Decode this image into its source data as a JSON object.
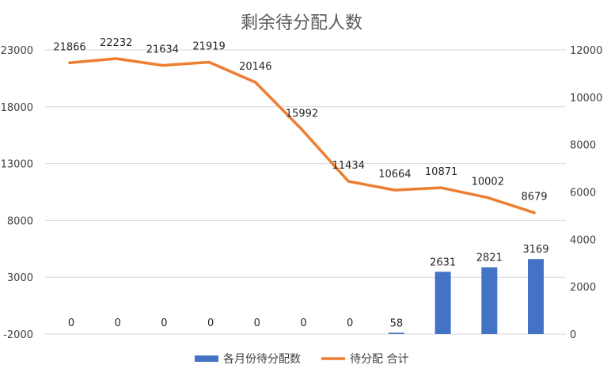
{
  "chart_data": {
    "type": "bar",
    "title": "剩余待分配人数",
    "categories": [
      "",
      "",
      "",
      "",
      "",
      "",
      "",
      "",
      "",
      "",
      ""
    ],
    "series": [
      {
        "name": "各月份待分配数",
        "type": "bar",
        "axis": "right",
        "color": "#4472C4",
        "values": [
          0,
          0,
          0,
          0,
          0,
          0,
          0,
          58,
          2631,
          2821,
          3169
        ]
      },
      {
        "name": "待分配 合计",
        "type": "line",
        "axis": "left",
        "color": "#ED7D31",
        "values": [
          21866,
          22232,
          21634,
          21919,
          20146,
          15992,
          11434,
          10664,
          10871,
          10002,
          8679
        ]
      }
    ],
    "y_left": {
      "ylim": [
        -2000,
        23000
      ],
      "ticks": [
        "23000",
        "18000",
        "13000",
        "8000",
        "3000",
        "-2000"
      ]
    },
    "y_right": {
      "ylim": [
        0,
        12000
      ],
      "ticks": [
        "12000",
        "10000",
        "8000",
        "6000",
        "4000",
        "2000",
        "0"
      ]
    },
    "grid": true,
    "legend": "bottom"
  }
}
